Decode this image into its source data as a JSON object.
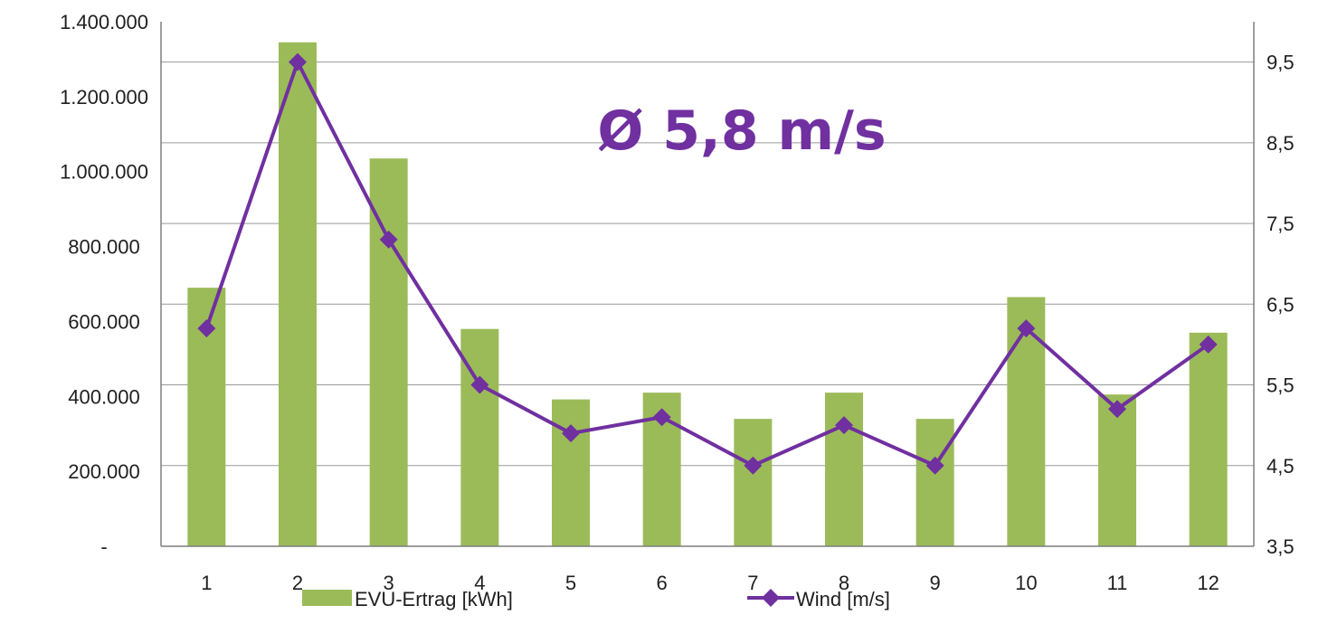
{
  "chart_data": {
    "type": "bar",
    "categories": [
      "1",
      "2",
      "3",
      "4",
      "5",
      "6",
      "7",
      "8",
      "9",
      "10",
      "11",
      "12"
    ],
    "series": [
      {
        "name": "EVU-Ertrag [kWh]",
        "type": "bar",
        "axis": "left",
        "color": "#9BBB59",
        "values": [
          690000,
          1345000,
          1035000,
          580000,
          392000,
          410000,
          340000,
          410000,
          340000,
          665000,
          405000,
          570000
        ]
      },
      {
        "name": "Wind [m/s]",
        "type": "line",
        "marker": "diamond",
        "axis": "right",
        "color": "#7030A0",
        "values": [
          6.2,
          9.5,
          7.3,
          5.5,
          4.9,
          5.1,
          4.5,
          5.0,
          4.5,
          6.2,
          5.2,
          6.0
        ]
      }
    ],
    "y_left": {
      "ylim": [
        0,
        1400000
      ],
      "ticks": [
        0,
        200000,
        400000,
        600000,
        800000,
        1000000,
        1200000,
        1400000
      ],
      "tick_labels": [
        "-",
        "200.000",
        "400.000",
        "600.000",
        "800.000",
        "1.000.000",
        "1.200.000",
        "1.400.000"
      ]
    },
    "y_right": {
      "ylim": [
        3.5,
        10.0
      ],
      "ticks": [
        3.5,
        4.5,
        5.5,
        6.5,
        7.5,
        8.5,
        9.5
      ],
      "tick_labels": [
        "3,5",
        "4,5",
        "5,5",
        "6,5",
        "7,5",
        "8,5",
        "9,5"
      ]
    },
    "annotation": "Ø 5,8 m/s",
    "grid": true,
    "legend_position": "bottom"
  }
}
